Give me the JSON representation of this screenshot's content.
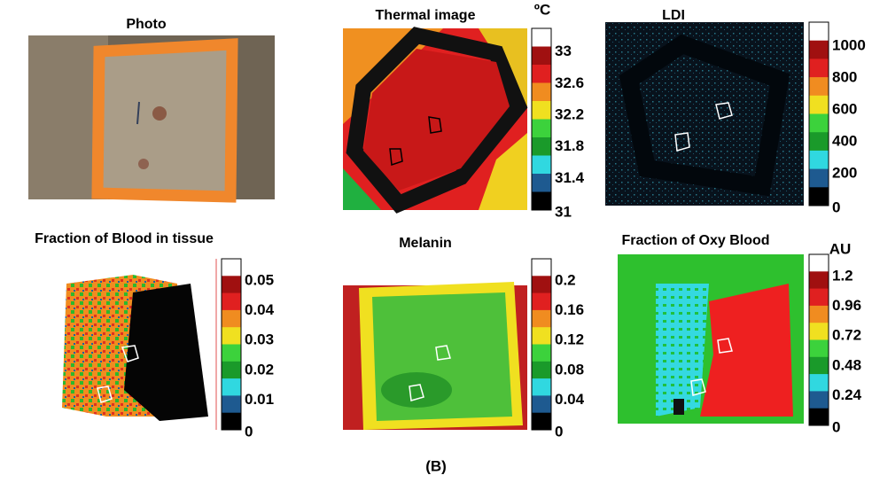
{
  "figure_label": "(B)",
  "panels": [
    {
      "title": "Photo"
    },
    {
      "title": "Thermal image",
      "unit": "ºC",
      "ticks": [
        "33",
        "32.6",
        "32.2",
        "31.8",
        "31.4",
        "31"
      ]
    },
    {
      "title": "LDI",
      "ticks": [
        "1000",
        "800",
        "600",
        "400",
        "200",
        "0"
      ]
    },
    {
      "title": "Fraction of Blood in tissue",
      "ticks": [
        "0.05",
        "0.04",
        "0.03",
        "0.02",
        "0.01",
        "0"
      ]
    },
    {
      "title": "Melanin",
      "ticks": [
        "0.2",
        "0.16",
        "0.12",
        "0.08",
        "0.04",
        "0"
      ]
    },
    {
      "title": "Fraction of Oxy Blood",
      "unit": "AU",
      "ticks": [
        "1.2",
        "0.96",
        "0.72",
        "0.48",
        "0.24",
        "0"
      ]
    }
  ]
}
